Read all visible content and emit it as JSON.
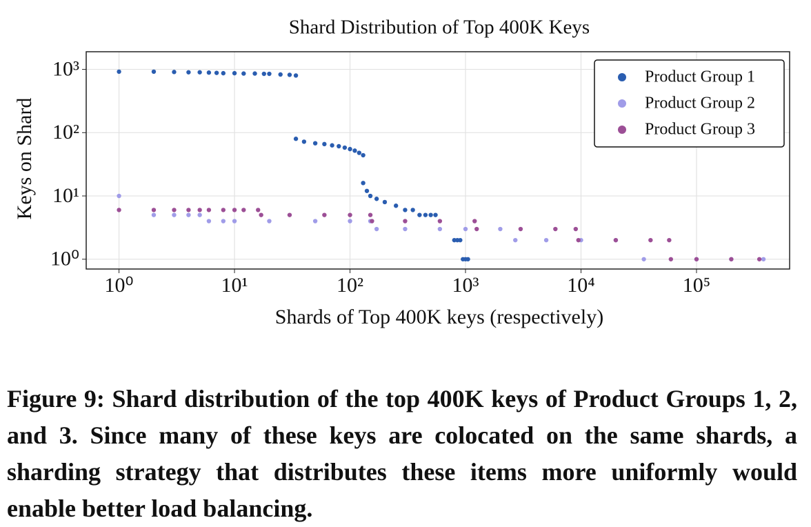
{
  "chart_data": {
    "type": "scatter",
    "title": "Shard Distribution of Top 400K Keys",
    "x_label": "Shards of Top 400K keys (respectively)",
    "y_label": "Keys on Shard",
    "log_x": true,
    "log_y": true,
    "grid": true,
    "legend": "upper right",
    "xlim": [
      0.52,
      640000
    ],
    "ylim": [
      0.7,
      1900
    ],
    "xticks": [
      {
        "value": 1,
        "label": "10⁰"
      },
      {
        "value": 10,
        "label": "10¹"
      },
      {
        "value": 100,
        "label": "10²"
      },
      {
        "value": 1000,
        "label": "10³"
      },
      {
        "value": 10000,
        "label": "10⁴"
      },
      {
        "value": 100000,
        "label": "10⁵"
      }
    ],
    "yticks": [
      {
        "value": 1,
        "label": "10⁰"
      },
      {
        "value": 10,
        "label": "10¹"
      },
      {
        "value": 100,
        "label": "10²"
      },
      {
        "value": 1000,
        "label": "10³"
      }
    ],
    "series": [
      {
        "name": "Product Group 1",
        "color": "#2a5db0",
        "x": [
          1,
          2,
          3,
          4,
          5,
          6,
          7,
          8,
          10,
          12,
          15,
          18,
          20,
          25,
          30,
          34,
          34,
          40,
          50,
          60,
          70,
          80,
          90,
          100,
          110,
          120,
          130,
          130,
          140,
          150,
          170,
          200,
          250,
          300,
          350,
          400,
          450,
          500,
          550,
          800,
          850,
          900,
          950,
          1000,
          1050
        ],
        "values": [
          920,
          920,
          910,
          900,
          900,
          890,
          880,
          870,
          870,
          860,
          860,
          850,
          850,
          830,
          820,
          800,
          80,
          72,
          68,
          66,
          63,
          61,
          58,
          55,
          52,
          48,
          44,
          16,
          12,
          10,
          9,
          8,
          7,
          6,
          6,
          5,
          5,
          5,
          5,
          2,
          2,
          2,
          1,
          1,
          1
        ]
      },
      {
        "name": "Product Group 2",
        "color": "#a09ce8",
        "x": [
          1,
          2,
          3,
          4,
          5,
          6,
          8,
          10,
          20,
          50,
          100,
          150,
          170,
          300,
          600,
          1000,
          2000,
          2700,
          5000,
          10000,
          20000,
          35000,
          100000,
          200000,
          380000
        ],
        "values": [
          10,
          5,
          5,
          5,
          5,
          4,
          4,
          4,
          4,
          4,
          4,
          4,
          3,
          3,
          3,
          3,
          3,
          2,
          2,
          2,
          2,
          1,
          1,
          1,
          1
        ]
      },
      {
        "name": "Product Group 3",
        "color": "#9c4f96",
        "x": [
          1,
          2,
          3,
          4,
          5,
          6,
          8,
          10,
          12,
          16,
          17,
          30,
          60,
          100,
          150,
          155,
          300,
          600,
          1200,
          1250,
          3000,
          6000,
          9000,
          9500,
          20000,
          40000,
          58000,
          60000,
          100000,
          200000,
          350000
        ],
        "values": [
          6,
          6,
          6,
          6,
          6,
          6,
          6,
          6,
          6,
          6,
          5,
          5,
          5,
          5,
          5,
          4,
          4,
          4,
          4,
          3,
          3,
          3,
          3,
          2,
          2,
          2,
          2,
          1,
          1,
          1,
          1
        ]
      }
    ]
  },
  "caption": "Figure 9: Shard distribution of the top 400K keys of Product Groups 1, 2, and 3. Since many of these keys are colocated on the same shards, a sharding strategy that distributes these items more uniformly would enable better load balancing."
}
